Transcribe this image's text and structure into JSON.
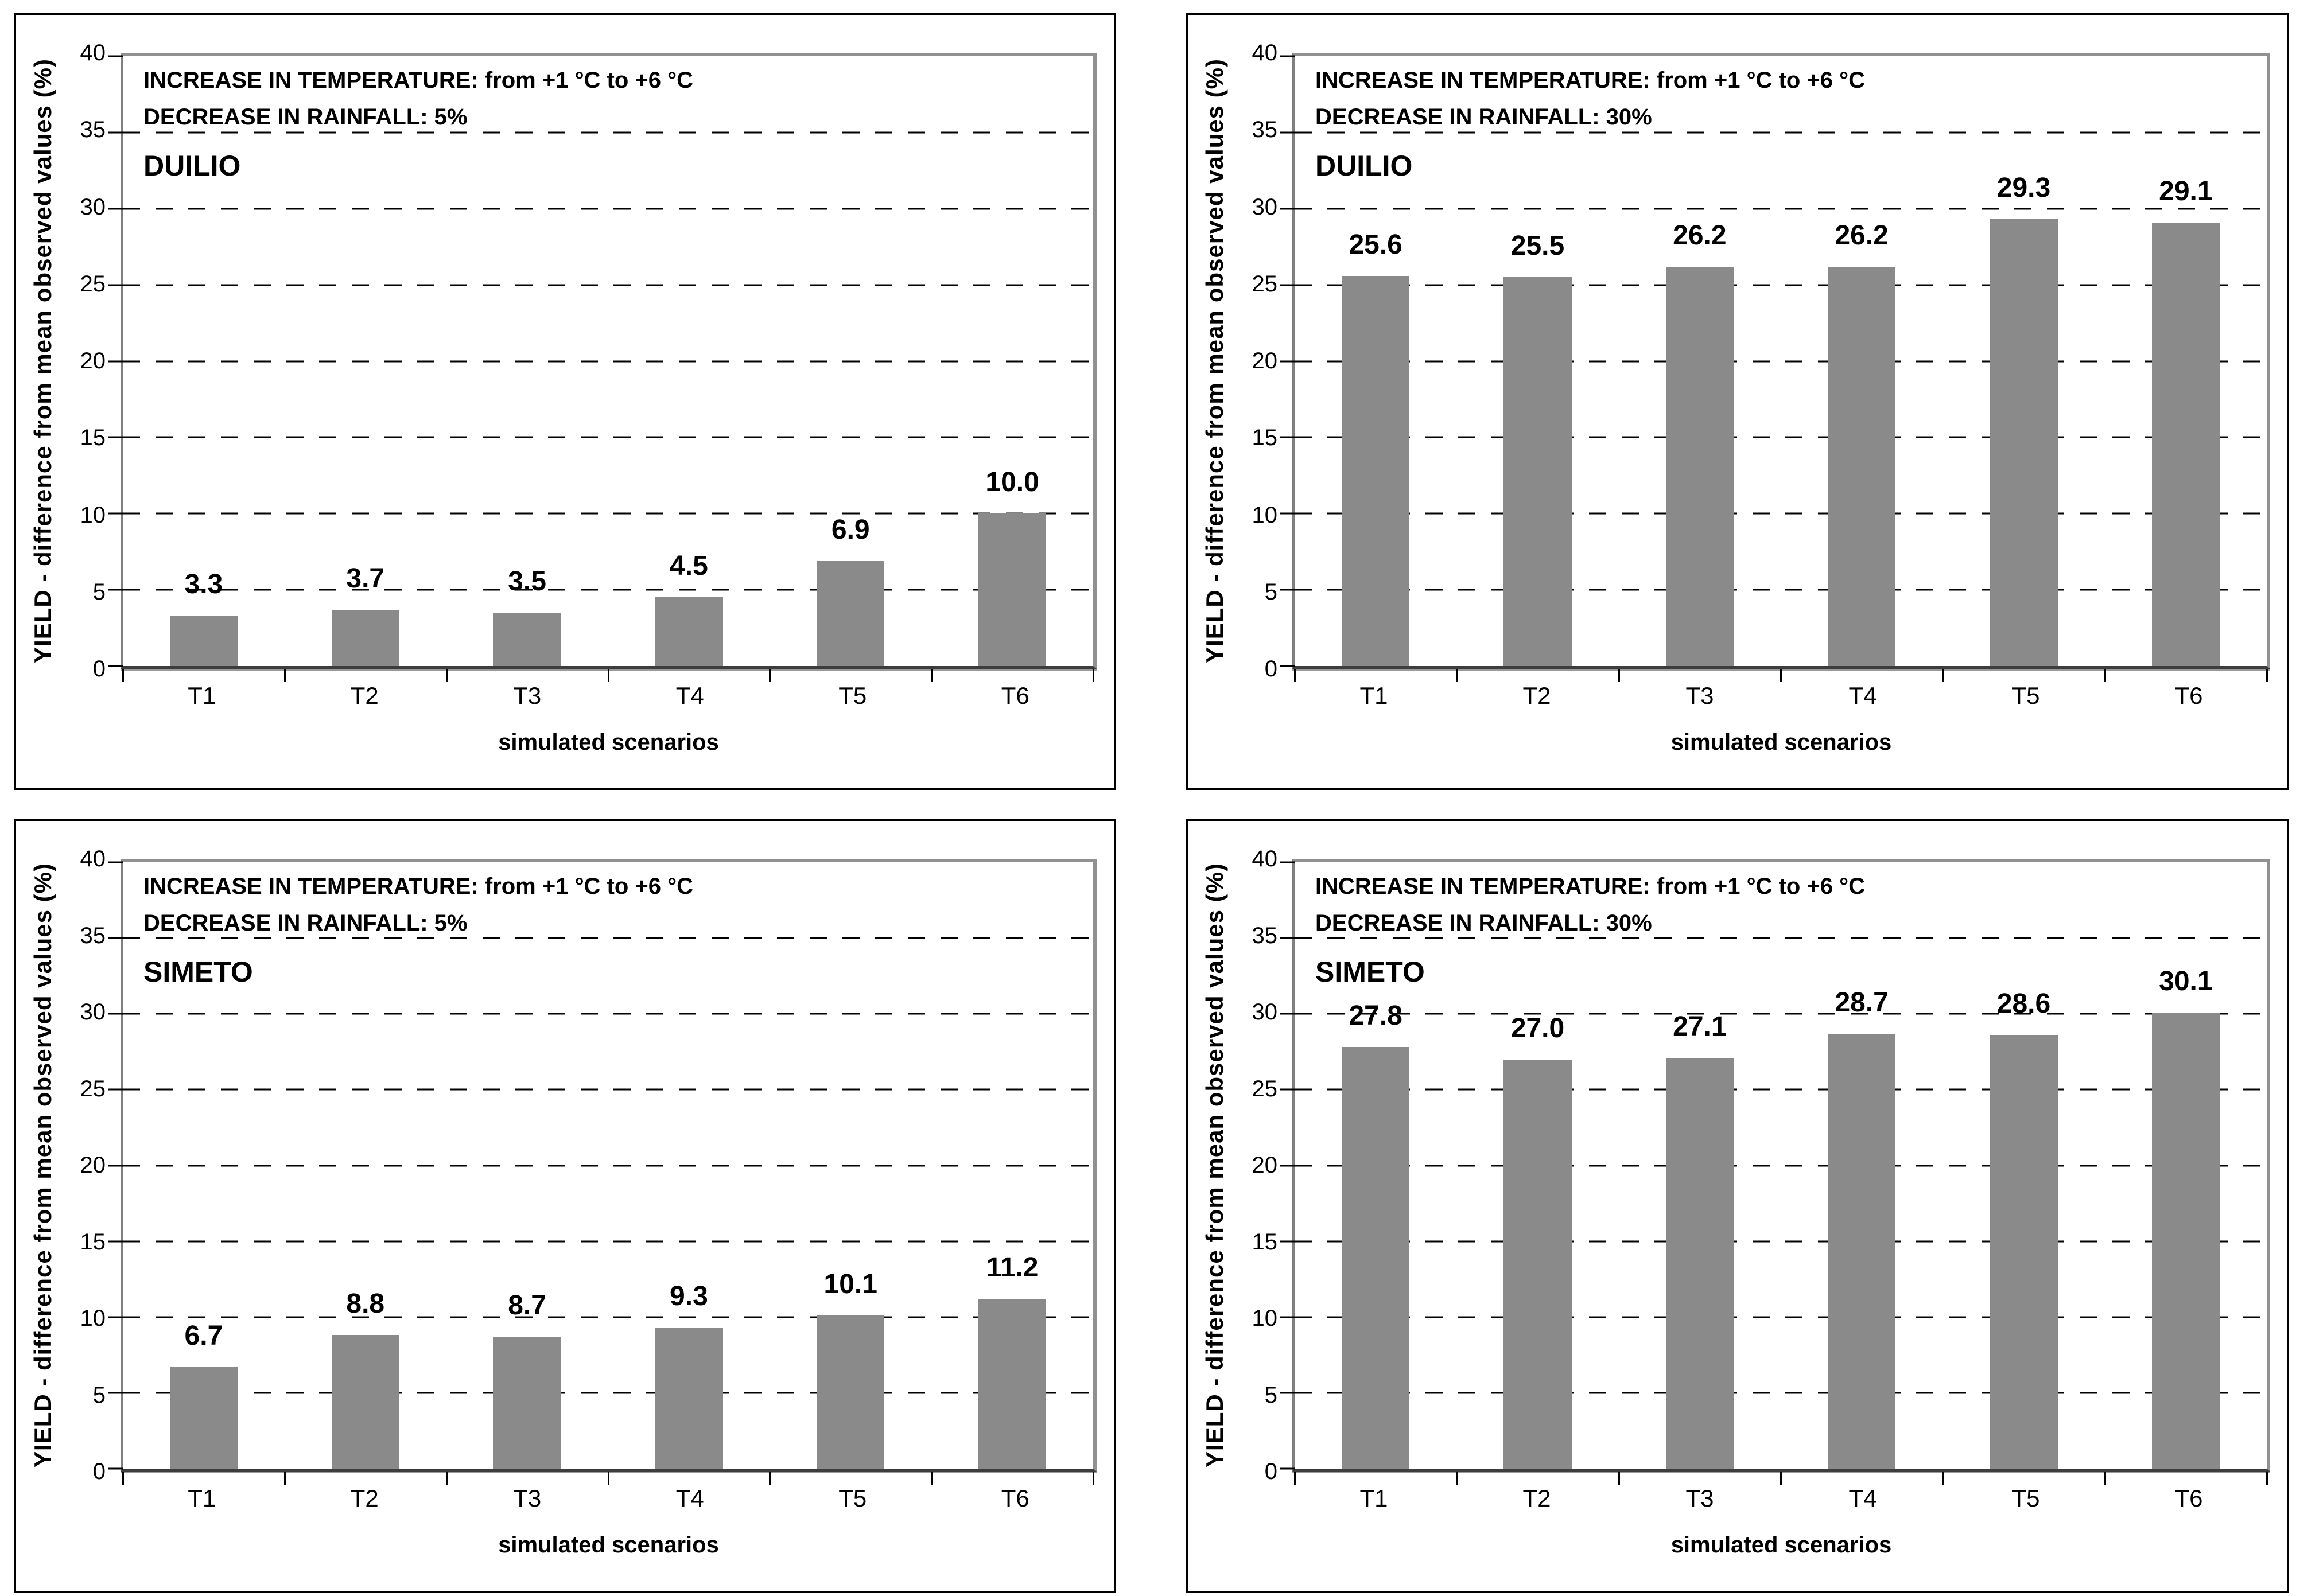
{
  "figure": {
    "background": "#ffffff",
    "y_axis_title": "YIELD - difference from mean observed values (%)",
    "x_axis_title": "simulated scenarios",
    "temperature_note": "INCREASE IN TEMPERATURE: from +1 °C to +6 °C",
    "y_ticks": [
      "40",
      "35",
      "30",
      "25",
      "20",
      "15",
      "10",
      "5",
      "0"
    ],
    "ylim": [
      0,
      40
    ],
    "categories": [
      "T1",
      "T2",
      "T3",
      "T4",
      "T5",
      "T6"
    ],
    "bar_color": "#8a8a8a",
    "gridline_style": "dashed horizontal every 5 units",
    "legend": "none"
  },
  "chart_data": [
    {
      "type": "bar",
      "position": "top-left",
      "cultivar": "DUILIO",
      "temperature_note": "INCREASE IN TEMPERATURE: from +1 °C to +6 °C",
      "rainfall_note": "DECREASE IN RAINFALL: 5%",
      "xlabel": "simulated scenarios",
      "ylabel": "YIELD - difference from mean observed values (%)",
      "ylim": [
        0,
        40
      ],
      "categories": [
        "T1",
        "T2",
        "T3",
        "T4",
        "T5",
        "T6"
      ],
      "values": [
        3.3,
        3.7,
        3.5,
        4.5,
        6.9,
        10.0
      ],
      "value_labels": [
        "3.3",
        "3.7",
        "3.5",
        "4.5",
        "6.9",
        "10.0"
      ]
    },
    {
      "type": "bar",
      "position": "top-right",
      "cultivar": "DUILIO",
      "temperature_note": "INCREASE IN TEMPERATURE: from +1 °C to +6 °C",
      "rainfall_note": "DECREASE IN RAINFALL: 30%",
      "xlabel": "simulated scenarios",
      "ylabel": "YIELD - difference from mean observed values (%)",
      "ylim": [
        0,
        40
      ],
      "categories": [
        "T1",
        "T2",
        "T3",
        "T4",
        "T5",
        "T6"
      ],
      "values": [
        25.6,
        25.5,
        26.2,
        26.2,
        29.3,
        29.1
      ],
      "value_labels": [
        "25.6",
        "25.5",
        "26.2",
        "26.2",
        "29.3",
        "29.1"
      ]
    },
    {
      "type": "bar",
      "position": "bottom-left",
      "cultivar": "SIMETO",
      "temperature_note": "INCREASE IN TEMPERATURE: from +1 °C to +6 °C",
      "rainfall_note": "DECREASE IN RAINFALL: 5%",
      "xlabel": "simulated scenarios",
      "ylabel": "YIELD - difference from mean observed values (%)",
      "ylim": [
        0,
        40
      ],
      "categories": [
        "T1",
        "T2",
        "T3",
        "T4",
        "T5",
        "T6"
      ],
      "values": [
        6.7,
        8.8,
        8.7,
        9.3,
        10.1,
        11.2
      ],
      "value_labels": [
        "6.7",
        "8.8",
        "8.7",
        "9.3",
        "10.1",
        "11.2"
      ]
    },
    {
      "type": "bar",
      "position": "bottom-right",
      "cultivar": "SIMETO",
      "temperature_note": "INCREASE IN TEMPERATURE: from +1 °C to +6 °C",
      "rainfall_note": "DECREASE IN RAINFALL: 30%",
      "xlabel": "simulated scenarios",
      "ylabel": "YIELD - difference from mean observed values (%)",
      "ylim": [
        0,
        40
      ],
      "categories": [
        "T1",
        "T2",
        "T3",
        "T4",
        "T5",
        "T6"
      ],
      "values": [
        27.8,
        27.0,
        27.1,
        28.7,
        28.6,
        30.1
      ],
      "value_labels": [
        "27.8",
        "27.0",
        "27.1",
        "28.7",
        "28.6",
        "30.1"
      ]
    }
  ]
}
